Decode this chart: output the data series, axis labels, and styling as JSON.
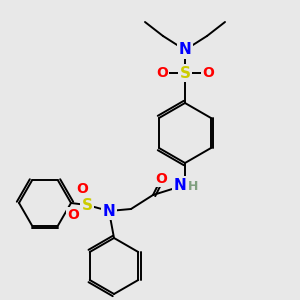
{
  "bg_color": "#e8e8e8",
  "bond_color": "#000000",
  "atom_colors": {
    "N": "#0000ff",
    "O": "#ff0000",
    "S": "#cccc00",
    "H": "#7f9f7f",
    "C": "#000000"
  },
  "figsize": [
    3.0,
    3.0
  ],
  "dpi": 100
}
